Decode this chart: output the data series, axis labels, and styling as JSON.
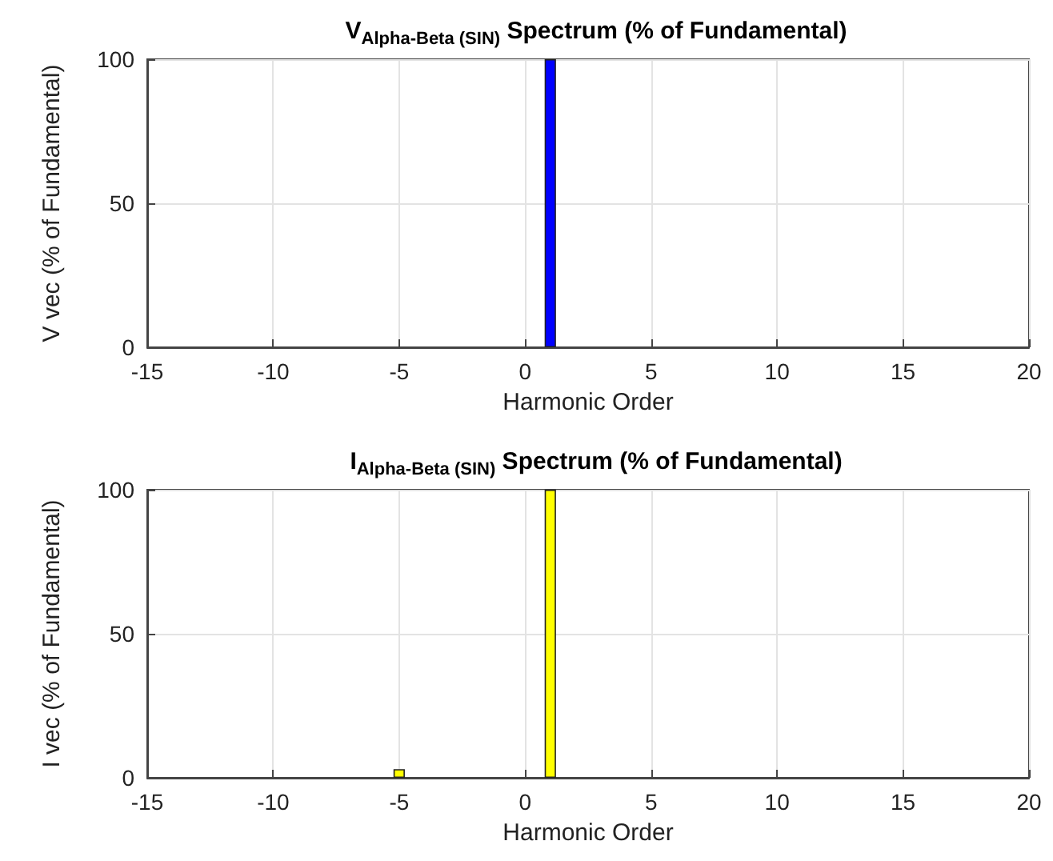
{
  "chart_data": [
    {
      "type": "bar",
      "title": "V$_{Alpha-Beta (SIN)}$ Spectrum (% of Fundamental)",
      "xlabel": "Harmonic Order",
      "ylabel": "V vec (% of Fundamental)",
      "x": [
        -15,
        -14,
        -13,
        -12,
        -11,
        -10,
        -9,
        -8,
        -7,
        -6,
        -5,
        -4,
        -3,
        -2,
        -1,
        0,
        1,
        2,
        3,
        4,
        5,
        6,
        7,
        8,
        9,
        10,
        11,
        12,
        13,
        14,
        15,
        16,
        17,
        18,
        19,
        20
      ],
      "series": [
        {
          "color": "#0000ff",
          "values": [
            0,
            0,
            0,
            0,
            0,
            0,
            0,
            0,
            0,
            0,
            0,
            0,
            0,
            0,
            0,
            0,
            100,
            0,
            0,
            0,
            0,
            0,
            0,
            0,
            0,
            0,
            0,
            0,
            0,
            0,
            0,
            0,
            0,
            0,
            0,
            0
          ]
        }
      ],
      "xlim": [
        -15,
        20
      ],
      "xticks": [
        -15,
        -10,
        -5,
        0,
        5,
        10,
        15,
        20
      ],
      "ylim": [
        0,
        100
      ],
      "yticks": [
        0,
        50,
        100
      ],
      "grid": true
    },
    {
      "type": "bar",
      "title": "I$_{Alpha-Beta (SIN)}$ Spectrum (% of Fundamental)",
      "xlabel": "Harmonic Order",
      "ylabel": "I vec (% of Fundamental)",
      "x": [
        -15,
        -14,
        -13,
        -12,
        -11,
        -10,
        -9,
        -8,
        -7,
        -6,
        -5,
        -4,
        -3,
        -2,
        -1,
        0,
        1,
        2,
        3,
        4,
        5,
        6,
        7,
        8,
        9,
        10,
        11,
        12,
        13,
        14,
        15,
        16,
        17,
        18,
        19,
        20
      ],
      "series": [
        {
          "color": "#ffff00",
          "values": [
            0,
            0,
            0,
            0,
            0,
            0,
            0,
            0,
            0,
            0,
            3,
            0,
            0,
            0,
            0,
            0,
            100,
            0,
            0,
            0,
            0,
            0,
            0,
            0,
            0,
            0,
            0,
            0,
            0,
            0,
            0,
            0,
            0,
            0,
            0,
            0
          ]
        }
      ],
      "xlim": [
        -15,
        20
      ],
      "xticks": [
        -15,
        -10,
        -5,
        0,
        5,
        10,
        15,
        20
      ],
      "ylim": [
        0,
        100
      ],
      "yticks": [
        0,
        50,
        100
      ],
      "grid": true
    }
  ]
}
